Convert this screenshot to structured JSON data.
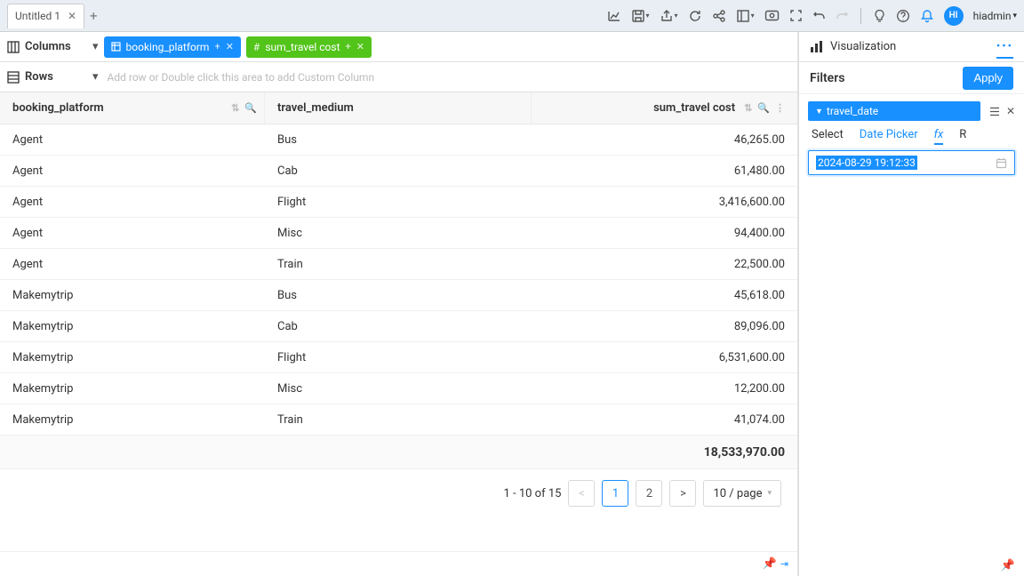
{
  "header": {
    "tab_title": "Untitled 1",
    "user": "hiadmin",
    "avatar_initials": "HI"
  },
  "shelves": {
    "columns_label": "Columns",
    "rows_label": "Rows",
    "rows_placeholder": "Add row or Double click this area to add Custom Column",
    "chips": [
      {
        "label": "booking_platform",
        "color": "blue",
        "type": "dim"
      },
      {
        "label": "sum_travel cost",
        "color": "green",
        "type": "measure"
      }
    ]
  },
  "grid": {
    "headers": {
      "c1": "booking_platform",
      "c2": "travel_medium",
      "c3": "sum_travel cost"
    },
    "rows": [
      {
        "c1": "Agent",
        "c2": "Bus",
        "c3": "46,265.00"
      },
      {
        "c1": "Agent",
        "c2": "Cab",
        "c3": "61,480.00"
      },
      {
        "c1": "Agent",
        "c2": "Flight",
        "c3": "3,416,600.00"
      },
      {
        "c1": "Agent",
        "c2": "Misc",
        "c3": "94,400.00"
      },
      {
        "c1": "Agent",
        "c2": "Train",
        "c3": "22,500.00"
      },
      {
        "c1": "Makemytrip",
        "c2": "Bus",
        "c3": "45,618.00"
      },
      {
        "c1": "Makemytrip",
        "c2": "Cab",
        "c3": "89,096.00"
      },
      {
        "c1": "Makemytrip",
        "c2": "Flight",
        "c3": "6,531,600.00"
      },
      {
        "c1": "Makemytrip",
        "c2": "Misc",
        "c3": "12,200.00"
      },
      {
        "c1": "Makemytrip",
        "c2": "Train",
        "c3": "41,074.00"
      }
    ],
    "total": "18,533,970.00"
  },
  "pager": {
    "range": "1 - 10 of 15",
    "pages": [
      "1",
      "2"
    ],
    "active": "1",
    "size": "10 / page"
  },
  "right": {
    "viz_label": "Visualization",
    "filters_label": "Filters",
    "apply": "Apply",
    "filter_field": "travel_date",
    "tabs": {
      "select": "Select",
      "picker": "Date Picker",
      "fx": "fx",
      "r": "R"
    },
    "date_value": "2024-08-29 19:12:33"
  },
  "colors": {
    "blue": "#1890ff",
    "green": "#52c41a",
    "header_bg": "#e8eef4",
    "grid_head_bg": "#f7f7f7",
    "border": "#e0e0e0"
  }
}
